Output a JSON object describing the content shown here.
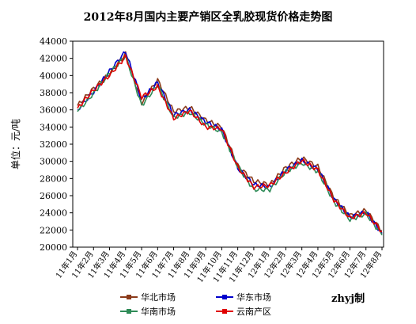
{
  "chart_data": {
    "type": "line",
    "title": "2012年8月国内主要产销区全乳胶现货价格走势图",
    "ylabel": "单位：元/吨",
    "xlabel": "",
    "credit": "zhyj制",
    "ylim": [
      20000,
      44000
    ],
    "yticks": [
      20000,
      22000,
      24000,
      26000,
      28000,
      30000,
      32000,
      34000,
      36000,
      38000,
      40000,
      42000,
      44000
    ],
    "categories": [
      "11年1月",
      "11年2月",
      "11年3月",
      "11年4月",
      "11年5月",
      "11年6月",
      "11年7月",
      "11年8月",
      "11年9月",
      "11年10月",
      "11年11月",
      "11年12月",
      "12年1月",
      "12年2月",
      "12年3月",
      "12年4月",
      "12年5月",
      "12年6月",
      "12年7月",
      "12年8月"
    ],
    "legend": {
      "placement": "bottom",
      "columns": 2
    },
    "grid": false,
    "series": [
      {
        "name": "华北市场",
        "color": "#8B3A1A",
        "values": [
          36500,
          38500,
          40200,
          42500,
          36800,
          39500,
          35800,
          36300,
          34800,
          34000,
          29500,
          27700,
          27300,
          29300,
          30400,
          29400,
          25800,
          23700,
          24300,
          21900
        ]
      },
      {
        "name": "华东市场",
        "color": "#0000CC",
        "values": [
          36000,
          38100,
          40500,
          42800,
          37200,
          39200,
          35400,
          36000,
          34600,
          33700,
          29200,
          27300,
          27000,
          29000,
          30100,
          29100,
          25600,
          23500,
          24100,
          21600
        ]
      },
      {
        "name": "华南市场",
        "color": "#2E8B57",
        "values": [
          35800,
          37900,
          40300,
          42300,
          36500,
          38900,
          35100,
          35700,
          34300,
          33400,
          29400,
          26700,
          26700,
          28800,
          29800,
          28800,
          25300,
          23200,
          23900,
          21400
        ]
      },
      {
        "name": "云南产区",
        "color": "#E00000",
        "values": [
          36200,
          38300,
          40000,
          42200,
          37500,
          38700,
          35000,
          35900,
          34000,
          33800,
          29300,
          27000,
          27200,
          28700,
          30100,
          29000,
          25500,
          23400,
          24000,
          21800
        ]
      }
    ]
  }
}
